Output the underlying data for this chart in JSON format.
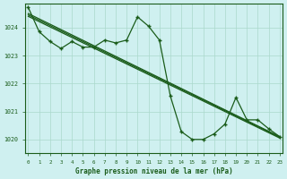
{
  "bg_color": "#cff0f0",
  "grid_color": "#aad8cc",
  "line_color": "#1a5c1a",
  "title": "Graphe pression niveau de la mer (hPa)",
  "ylim": [
    1019.5,
    1024.85
  ],
  "yticks": [
    1020,
    1021,
    1022,
    1023,
    1024
  ],
  "xticks": [
    0,
    1,
    2,
    3,
    4,
    5,
    6,
    7,
    8,
    9,
    10,
    11,
    12,
    13,
    14,
    15,
    16,
    17,
    18,
    19,
    20,
    21,
    22,
    23
  ],
  "trend1_x": [
    0,
    23
  ],
  "trend1_y": [
    1024.5,
    1020.1
  ],
  "trend2_x": [
    0,
    23
  ],
  "trend2_y": [
    1024.4,
    1020.05
  ],
  "trend3_x": [
    0,
    23
  ],
  "trend3_y": [
    1024.45,
    1020.08
  ],
  "jagged_x": [
    0,
    1,
    2,
    3,
    4,
    5,
    6,
    7,
    8,
    9,
    10,
    11,
    12,
    13,
    14,
    15,
    16,
    17,
    18,
    19,
    20,
    21,
    22,
    23
  ],
  "jagged_y": [
    1024.72,
    1023.85,
    1023.5,
    1023.25,
    1023.5,
    1023.3,
    1023.3,
    1023.55,
    1023.45,
    1023.55,
    1024.38,
    1024.05,
    1023.55,
    1021.55,
    1020.28,
    1020.0,
    1020.0,
    1020.2,
    1020.55,
    1021.5,
    1020.7,
    1020.7,
    1020.38,
    1020.1
  ]
}
